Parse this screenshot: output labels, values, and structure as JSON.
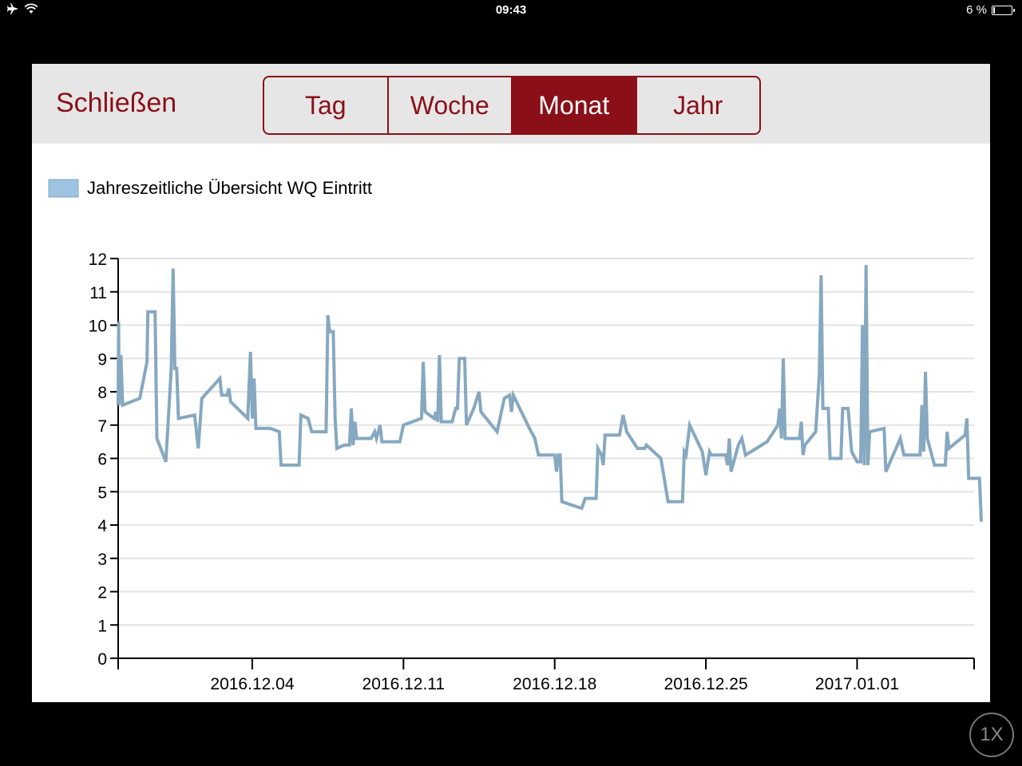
{
  "status_bar": {
    "time": "09:43",
    "battery": "6 %",
    "airplane_icon": "airplane-icon",
    "wifi_icon": "wifi-icon"
  },
  "toolbar": {
    "close_label": "Schließen",
    "tabs": [
      {
        "label": "Tag",
        "active": false
      },
      {
        "label": "Woche",
        "active": false
      },
      {
        "label": "Monat",
        "active": true
      },
      {
        "label": "Jahr",
        "active": false
      }
    ]
  },
  "zoom_label": "1X",
  "colors": {
    "accent": "#8b0f18",
    "line": "#86a8c0",
    "legend_fill": "#9dc3e0"
  },
  "chart_data": {
    "type": "line",
    "legend": "Jahreszeitliche Übersicht WQ Eintritt",
    "ylim": [
      0,
      12
    ],
    "yticks": [
      0,
      1,
      2,
      3,
      4,
      5,
      6,
      7,
      8,
      9,
      10,
      11,
      12
    ],
    "xlim": [
      "2016-11-27T19:00",
      "2017-01-06T10:00"
    ],
    "xticks": [
      {
        "date": "2016-12-04",
        "label": "2016.12.04"
      },
      {
        "date": "2016-12-11",
        "label": "2016.12.11"
      },
      {
        "date": "2016-12-18",
        "label": "2016.12.18"
      },
      {
        "date": "2016-12-25",
        "label": "2016.12.25"
      },
      {
        "date": "2017-01-01",
        "label": "2017.01.01"
      }
    ],
    "grid": true,
    "series": [
      {
        "name": "Jahreszeitliche Übersicht WQ Eintritt",
        "points": [
          [
            "2016-11-27T19:00",
            7.6
          ],
          [
            "2016-11-27T19:30",
            10.1
          ],
          [
            "2016-11-27T20:00",
            7.6
          ],
          [
            "2016-11-27T22:00",
            9.1
          ],
          [
            "2016-11-28T00:00",
            7.6
          ],
          [
            "2016-11-28T19:00",
            7.8
          ],
          [
            "2016-11-29T03:00",
            8.9
          ],
          [
            "2016-11-29T04:00",
            10.4
          ],
          [
            "2016-11-29T12:00",
            10.4
          ],
          [
            "2016-11-29T14:00",
            6.6
          ],
          [
            "2016-11-30T00:00",
            5.9
          ],
          [
            "2016-11-30T06:00",
            8.7
          ],
          [
            "2016-11-30T08:00",
            11.7
          ],
          [
            "2016-11-30T10:00",
            8.7
          ],
          [
            "2016-11-30T12:00",
            8.7
          ],
          [
            "2016-11-30T14:00",
            7.2
          ],
          [
            "2016-12-01T08:00",
            7.3
          ],
          [
            "2016-12-01T12:00",
            6.3
          ],
          [
            "2016-12-01T16:00",
            7.8
          ],
          [
            "2016-12-02T12:00",
            8.4
          ],
          [
            "2016-12-02T14:00",
            7.9
          ],
          [
            "2016-12-02T20:00",
            7.9
          ],
          [
            "2016-12-02T22:00",
            8.1
          ],
          [
            "2016-12-03T00:00",
            7.7
          ],
          [
            "2016-12-03T19:00",
            7.2
          ],
          [
            "2016-12-03T22:00",
            9.2
          ],
          [
            "2016-12-04T00:00",
            7.2
          ],
          [
            "2016-12-04T02:00",
            8.4
          ],
          [
            "2016-12-04T04:00",
            6.9
          ],
          [
            "2016-12-04T20:00",
            6.9
          ],
          [
            "2016-12-05T06:00",
            6.8
          ],
          [
            "2016-12-05T08:00",
            5.8
          ],
          [
            "2016-12-06T04:00",
            5.8
          ],
          [
            "2016-12-06T06:00",
            7.3
          ],
          [
            "2016-12-06T14:00",
            7.2
          ],
          [
            "2016-12-06T18:00",
            6.8
          ],
          [
            "2016-12-07T10:00",
            6.8
          ],
          [
            "2016-12-07T12:00",
            10.3
          ],
          [
            "2016-12-07T14:00",
            9.8
          ],
          [
            "2016-12-07T18:00",
            9.8
          ],
          [
            "2016-12-07T20:00",
            7.2
          ],
          [
            "2016-12-07T22:00",
            6.3
          ],
          [
            "2016-12-08T06:00",
            6.4
          ],
          [
            "2016-12-08T12:00",
            6.4
          ],
          [
            "2016-12-08T14:00",
            7.5
          ],
          [
            "2016-12-08T16:00",
            6.4
          ],
          [
            "2016-12-08T18:00",
            7.1
          ],
          [
            "2016-12-08T20:00",
            6.6
          ],
          [
            "2016-12-09T12:00",
            6.6
          ],
          [
            "2016-12-09T16:00",
            6.8
          ],
          [
            "2016-12-09T18:00",
            6.6
          ],
          [
            "2016-12-09T22:00",
            7.0
          ],
          [
            "2016-12-10T00:00",
            6.5
          ],
          [
            "2016-12-10T20:00",
            6.5
          ],
          [
            "2016-12-11T00:00",
            7.0
          ],
          [
            "2016-12-11T20:00",
            7.2
          ],
          [
            "2016-12-11T22:00",
            8.9
          ],
          [
            "2016-12-12T00:00",
            7.4
          ],
          [
            "2016-12-12T10:00",
            7.2
          ],
          [
            "2016-12-12T12:00",
            7.4
          ],
          [
            "2016-12-12T14:00",
            7.1
          ],
          [
            "2016-12-12T16:00",
            9.1
          ],
          [
            "2016-12-12T18:00",
            7.1
          ],
          [
            "2016-12-13T06:00",
            7.1
          ],
          [
            "2016-12-13T10:00",
            7.5
          ],
          [
            "2016-12-13T12:00",
            7.5
          ],
          [
            "2016-12-13T14:00",
            9.0
          ],
          [
            "2016-12-13T20:00",
            9.0
          ],
          [
            "2016-12-13T22:00",
            7.0
          ],
          [
            "2016-12-14T06:00",
            7.5
          ],
          [
            "2016-12-14T12:00",
            8.0
          ],
          [
            "2016-12-14T14:00",
            7.4
          ],
          [
            "2016-12-15T08:00",
            6.8
          ],
          [
            "2016-12-15T16:00",
            7.8
          ],
          [
            "2016-12-15T22:00",
            7.9
          ],
          [
            "2016-12-16T00:00",
            7.4
          ],
          [
            "2016-12-16T02:00",
            7.9
          ],
          [
            "2016-12-16T20:00",
            6.9
          ],
          [
            "2016-12-17T02:00",
            6.6
          ],
          [
            "2016-12-17T06:00",
            6.1
          ],
          [
            "2016-12-18T00:00",
            6.1
          ],
          [
            "2016-12-18T02:00",
            5.6
          ],
          [
            "2016-12-18T04:00",
            6.1
          ],
          [
            "2016-12-18T06:00",
            6.1
          ],
          [
            "2016-12-18T08:00",
            4.7
          ],
          [
            "2016-12-19T06:00",
            4.5
          ],
          [
            "2016-12-19T10:00",
            4.8
          ],
          [
            "2016-12-19T22:00",
            4.8
          ],
          [
            "2016-12-20T00:00",
            6.3
          ],
          [
            "2016-12-20T04:00",
            6.1
          ],
          [
            "2016-12-20T06:00",
            5.8
          ],
          [
            "2016-12-20T08:00",
            6.7
          ],
          [
            "2016-12-20T16:00",
            6.7
          ],
          [
            "2016-12-21T00:00",
            6.7
          ],
          [
            "2016-12-21T04:00",
            7.3
          ],
          [
            "2016-12-21T08:00",
            6.8
          ],
          [
            "2016-12-21T20:00",
            6.3
          ],
          [
            "2016-12-22T04:00",
            6.3
          ],
          [
            "2016-12-22T06:00",
            6.4
          ],
          [
            "2016-12-22T22:00",
            6.0
          ],
          [
            "2016-12-23T06:00",
            4.7
          ],
          [
            "2016-12-23T22:00",
            4.7
          ],
          [
            "2016-12-24T00:00",
            6.2
          ],
          [
            "2016-12-24T02:00",
            6.1
          ],
          [
            "2016-12-24T06:00",
            7.0
          ],
          [
            "2016-12-24T20:00",
            6.2
          ],
          [
            "2016-12-25T00:00",
            5.5
          ],
          [
            "2016-12-25T04:00",
            6.2
          ],
          [
            "2016-12-25T06:00",
            6.1
          ],
          [
            "2016-12-25T22:00",
            6.1
          ],
          [
            "2016-12-26T00:00",
            5.8
          ],
          [
            "2016-12-26T02:00",
            6.6
          ],
          [
            "2016-12-26T04:00",
            5.6
          ],
          [
            "2016-12-26T12:00",
            6.4
          ],
          [
            "2016-12-26T16:00",
            6.6
          ],
          [
            "2016-12-26T20:00",
            6.1
          ],
          [
            "2016-12-27T20:00",
            6.5
          ],
          [
            "2016-12-28T08:00",
            7.0
          ],
          [
            "2016-12-28T10:00",
            7.5
          ],
          [
            "2016-12-28T12:00",
            6.6
          ],
          [
            "2016-12-28T14:00",
            9.0
          ],
          [
            "2016-12-28T16:00",
            6.6
          ],
          [
            "2016-12-29T08:00",
            6.6
          ],
          [
            "2016-12-29T10:00",
            7.1
          ],
          [
            "2016-12-29T12:00",
            6.1
          ],
          [
            "2016-12-29T14:00",
            6.4
          ],
          [
            "2016-12-30T02:00",
            6.8
          ],
          [
            "2016-12-30T06:00",
            8.5
          ],
          [
            "2016-12-30T08:00",
            11.5
          ],
          [
            "2016-12-30T10:00",
            7.5
          ],
          [
            "2016-12-30T16:00",
            7.5
          ],
          [
            "2016-12-30T18:00",
            6.0
          ],
          [
            "2016-12-31T06:00",
            6.0
          ],
          [
            "2016-12-31T08:00",
            7.5
          ],
          [
            "2016-12-31T14:00",
            7.5
          ],
          [
            "2016-12-31T18:00",
            6.2
          ],
          [
            "2017-01-01T00:00",
            5.9
          ],
          [
            "2017-01-01T04:00",
            5.9
          ],
          [
            "2017-01-01T06:00",
            10.0
          ],
          [
            "2017-01-01T08:00",
            5.8
          ],
          [
            "2017-01-01T10:00",
            11.8
          ],
          [
            "2017-01-01T12:00",
            5.8
          ],
          [
            "2017-01-01T14:00",
            6.8
          ],
          [
            "2017-01-02T06:00",
            6.9
          ],
          [
            "2017-01-02T08:00",
            5.6
          ],
          [
            "2017-01-03T00:00",
            6.6
          ],
          [
            "2017-01-03T04:00",
            6.1
          ],
          [
            "2017-01-03T22:00",
            6.1
          ],
          [
            "2017-01-04T00:00",
            7.6
          ],
          [
            "2017-01-04T02:00",
            6.2
          ],
          [
            "2017-01-04T04:00",
            8.6
          ],
          [
            "2017-01-04T06:00",
            6.6
          ],
          [
            "2017-01-04T14:00",
            5.8
          ],
          [
            "2017-01-05T02:00",
            5.8
          ],
          [
            "2017-01-05T04:00",
            6.8
          ],
          [
            "2017-01-05T06:00",
            6.3
          ],
          [
            "2017-01-06T00:00",
            6.7
          ],
          [
            "2017-01-06T02:00",
            7.2
          ],
          [
            "2017-01-06T04:00",
            5.4
          ],
          [
            "2017-01-06T16:00",
            5.4
          ],
          [
            "2017-01-06T18:00",
            4.1
          ]
        ]
      }
    ]
  }
}
